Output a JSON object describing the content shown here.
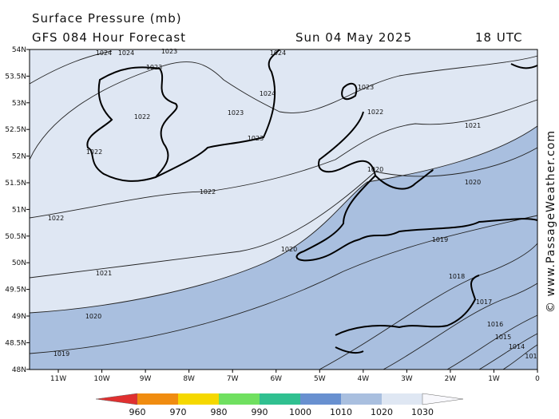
{
  "header": {
    "title": "Surface Pressure (mb)",
    "model": "GFS 084 Hour Forecast",
    "date": "Sun 04 May 2025",
    "time": "18 UTC"
  },
  "lat_labels": [
    "54N",
    "53.5N",
    "53N",
    "52.5N",
    "52N",
    "51.5N",
    "51N",
    "50.5N",
    "50N",
    "49.5N",
    "49N",
    "48.5N",
    "48N"
  ],
  "lon_labels": [
    "11W",
    "10W",
    "9W",
    "8W",
    "7W",
    "6W",
    "5W",
    "4W",
    "3W",
    "2W",
    "1W",
    "0"
  ],
  "isobar_labels": [
    "1024",
    "1024",
    "1023",
    "1024",
    "1023",
    "1024",
    "1023",
    "1022",
    "1023",
    "1022",
    "1021",
    "1022",
    "1023",
    "1020",
    "1020",
    "1022",
    "1022",
    "1019",
    "1020",
    "1021",
    "1018",
    "1017",
    "1020",
    "1016",
    "1015",
    "1014",
    "1019",
    "101"
  ],
  "colorbar_labels": [
    "960",
    "970",
    "980",
    "990",
    "1000",
    "1010",
    "1020",
    "1030"
  ],
  "credit": "© www.PassageWeather.com"
}
